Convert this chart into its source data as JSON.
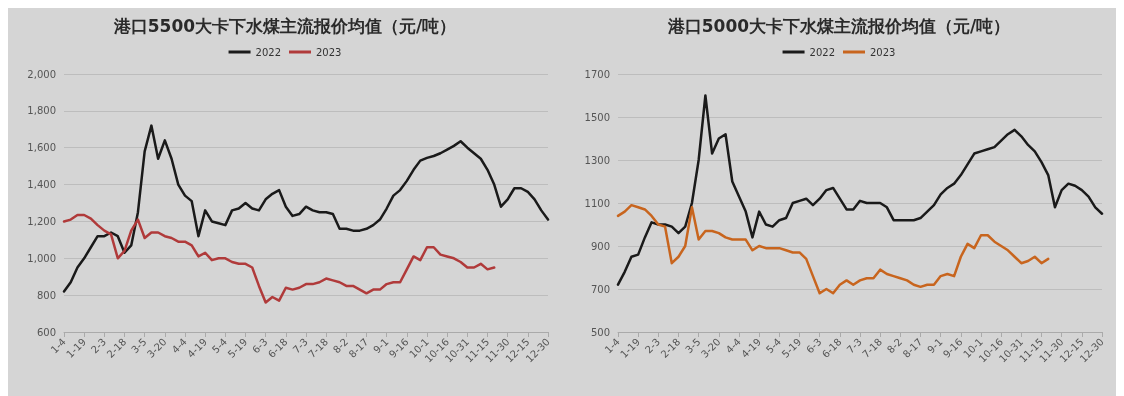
{
  "chart_data": [
    {
      "type": "line",
      "title": "港口5500大卡下水煤主流报价均值（元/吨）",
      "categories": [
        "1-4",
        null,
        null,
        "1-19",
        null,
        null,
        "2-3",
        null,
        null,
        "2-18",
        null,
        null,
        "3-5",
        null,
        null,
        "3-20",
        null,
        null,
        "4-4",
        null,
        null,
        "4-19",
        null,
        null,
        "5-4",
        null,
        null,
        "5-19",
        null,
        null,
        "6-3",
        null,
        null,
        "6-18",
        null,
        null,
        "7-3",
        null,
        null,
        "7-18",
        null,
        null,
        "8-2",
        null,
        null,
        "8-17",
        null,
        null,
        "9-1",
        null,
        null,
        "9-16",
        null,
        null,
        "10-1",
        null,
        null,
        "10-16",
        null,
        null,
        "10-31",
        null,
        null,
        "11-15",
        null,
        null,
        "11-30",
        null,
        null,
        "12-15",
        null,
        null,
        "12-30"
      ],
      "series": [
        {
          "name": "2022",
          "color": "#1a1a1a",
          "values": [
            820,
            870,
            950,
            1000,
            1060,
            1120,
            1120,
            1140,
            1120,
            1030,
            1070,
            1250,
            1580,
            1720,
            1540,
            1640,
            1540,
            1400,
            1340,
            1310,
            1120,
            1260,
            1200,
            1190,
            1180,
            1260,
            1270,
            1300,
            1270,
            1260,
            1320,
            1350,
            1370,
            1280,
            1230,
            1240,
            1280,
            1260,
            1250,
            1250,
            1240,
            1160,
            1160,
            1150,
            1150,
            1160,
            1180,
            1210,
            1270,
            1340,
            1370,
            1420,
            1480,
            1530,
            1545,
            1555,
            1570,
            1590,
            1610,
            1635,
            1600,
            1570,
            1540,
            1480,
            1400,
            1280,
            1320,
            1380,
            1380,
            1360,
            1320,
            1260,
            1210
          ]
        },
        {
          "name": "2023",
          "color": "#b03a3a",
          "values": [
            1200,
            1210,
            1235,
            1235,
            1215,
            1180,
            1150,
            1130,
            1000,
            1040,
            1150,
            1210,
            1110,
            1140,
            1140,
            1120,
            1110,
            1090,
            1090,
            1070,
            1010,
            1030,
            990,
            1000,
            1000,
            980,
            970,
            970,
            950,
            850,
            760,
            790,
            770,
            840,
            830,
            840,
            860,
            860,
            870,
            890,
            880,
            870,
            850,
            850,
            830,
            810,
            830,
            830,
            860,
            870,
            870,
            940,
            1010,
            990,
            1060,
            1060,
            1020,
            1010,
            1000,
            980,
            950,
            950,
            970,
            940,
            950,
            null,
            null,
            null,
            null,
            null,
            null,
            null,
            null
          ]
        }
      ],
      "ylim": [
        600,
        2000
      ],
      "yticks": [
        {
          "value": 600,
          "label": "600"
        },
        {
          "value": 800,
          "label": "800"
        },
        {
          "value": 1000,
          "label": "1,000"
        },
        {
          "value": 1200,
          "label": "1,200"
        },
        {
          "value": 1400,
          "label": "1,400"
        },
        {
          "value": 1600,
          "label": "1,600"
        },
        {
          "value": 1800,
          "label": "1,800"
        },
        {
          "value": 2000,
          "label": "2,000"
        }
      ],
      "grid": "y",
      "legend": "top",
      "marker": "none",
      "line_style": "solid"
    },
    {
      "type": "line",
      "title": "港口5000大卡下水煤主流报价均值（元/吨）",
      "categories": [
        "1-4",
        null,
        null,
        "1-19",
        null,
        null,
        "2-3",
        null,
        null,
        "2-18",
        null,
        null,
        "3-5",
        null,
        null,
        "3-20",
        null,
        null,
        "4-4",
        null,
        null,
        "4-19",
        null,
        null,
        "5-4",
        null,
        null,
        "5-19",
        null,
        null,
        "6-3",
        null,
        null,
        "6-18",
        null,
        null,
        "7-3",
        null,
        null,
        "7-18",
        null,
        null,
        "8-2",
        null,
        null,
        "8-17",
        null,
        null,
        "9-1",
        null,
        null,
        "9-16",
        null,
        null,
        "10-1",
        null,
        null,
        "10-16",
        null,
        null,
        "10-31",
        null,
        null,
        "11-15",
        null,
        null,
        "11-30",
        null,
        null,
        "12-15",
        null,
        null,
        "12-30"
      ],
      "series": [
        {
          "name": "2022",
          "color": "#1a1a1a",
          "values": [
            720,
            780,
            850,
            860,
            940,
            1010,
            1000,
            1000,
            990,
            960,
            990,
            1100,
            1300,
            1600,
            1330,
            1400,
            1420,
            1200,
            1130,
            1060,
            940,
            1060,
            1000,
            990,
            1020,
            1030,
            1100,
            1110,
            1120,
            1090,
            1120,
            1160,
            1170,
            1120,
            1070,
            1070,
            1110,
            1100,
            1100,
            1100,
            1080,
            1020,
            1020,
            1020,
            1020,
            1030,
            1060,
            1090,
            1140,
            1170,
            1190,
            1230,
            1280,
            1330,
            1340,
            1350,
            1360,
            1390,
            1420,
            1440,
            1410,
            1370,
            1340,
            1290,
            1230,
            1080,
            1160,
            1190,
            1180,
            1160,
            1130,
            1080,
            1050
          ]
        },
        {
          "name": "2023",
          "color": "#c8651e",
          "values": [
            1040,
            1060,
            1090,
            1080,
            1070,
            1040,
            1000,
            990,
            820,
            850,
            900,
            1080,
            930,
            970,
            970,
            960,
            940,
            930,
            930,
            930,
            880,
            900,
            890,
            890,
            890,
            880,
            870,
            870,
            840,
            760,
            680,
            700,
            680,
            720,
            740,
            720,
            740,
            750,
            750,
            790,
            770,
            760,
            750,
            740,
            720,
            710,
            720,
            720,
            760,
            770,
            760,
            850,
            910,
            890,
            950,
            950,
            920,
            900,
            880,
            850,
            820,
            830,
            850,
            820,
            840,
            null,
            null,
            null,
            null,
            null,
            null,
            null,
            null
          ]
        }
      ],
      "ylim": [
        500,
        1700
      ],
      "yticks": [
        500,
        700,
        900,
        1100,
        1300,
        1500,
        1700
      ],
      "grid": "y",
      "legend": "top",
      "marker": "none",
      "line_style": "solid"
    }
  ]
}
